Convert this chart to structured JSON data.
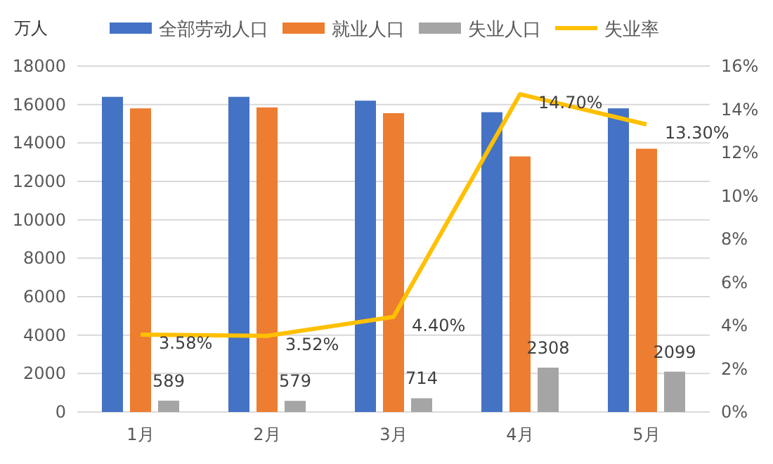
{
  "chart_data": {
    "type": "bar",
    "ylabel": "万人",
    "categories": [
      "1月",
      "2月",
      "3月",
      "4月",
      "5月"
    ],
    "series": [
      {
        "name": "全部劳动人口",
        "color": "#4472c4",
        "values": [
          16400,
          16400,
          16200,
          15600,
          15800
        ]
      },
      {
        "name": "就业人口",
        "color": "#ed7d31",
        "values": [
          15800,
          15850,
          15550,
          13300,
          13700
        ]
      },
      {
        "name": "失业人口",
        "color": "#a5a5a5",
        "values": [
          589,
          579,
          714,
          2308,
          2099
        ],
        "value_labels": [
          "589",
          "579",
          "714",
          "2308",
          "2099"
        ]
      },
      {
        "name": "失业率",
        "type": "line",
        "axis": "y2",
        "color": "#ffc000",
        "values": [
          3.58,
          3.52,
          4.4,
          14.7,
          13.3
        ],
        "value_labels": [
          "3.58%",
          "3.52%",
          "4.40%",
          "14.70%",
          "13.30%"
        ]
      }
    ],
    "ylim": [
      0,
      18000
    ],
    "yticks": [
      0,
      2000,
      4000,
      6000,
      8000,
      10000,
      12000,
      14000,
      16000,
      18000
    ],
    "y2lim": [
      0,
      16
    ],
    "y2ticks": [
      {
        "value": 0,
        "label": "0%"
      },
      {
        "value": 2,
        "label": "2%"
      },
      {
        "value": 4,
        "label": "4%"
      },
      {
        "value": 6,
        "label": "6%"
      },
      {
        "value": 8,
        "label": "8%"
      },
      {
        "value": 10,
        "label": "10%"
      },
      {
        "value": 12,
        "label": "12%"
      },
      {
        "value": 14,
        "label": "14%"
      },
      {
        "value": 16,
        "label": "16%"
      }
    ],
    "grid": "y",
    "legend": "top"
  }
}
